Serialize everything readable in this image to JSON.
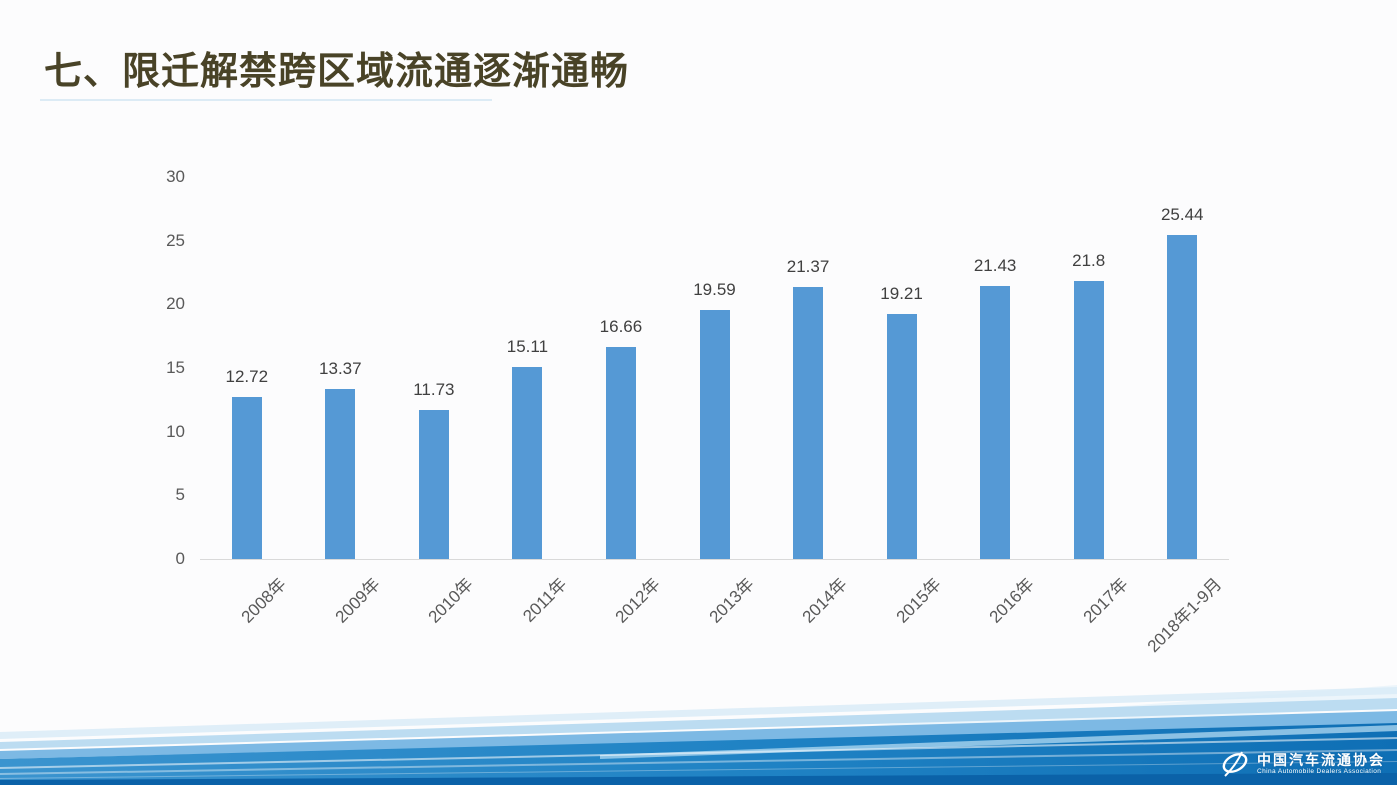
{
  "slide": {
    "title": "七、限迁解禁跨区域流通逐渐通畅"
  },
  "chart_data": {
    "type": "bar",
    "title": "",
    "xlabel": "",
    "ylabel": "",
    "categories": [
      "2008年",
      "2009年",
      "2010年",
      "2011年",
      "2012年",
      "2013年",
      "2014年",
      "2015年",
      "2016年",
      "2017年",
      "2018年1-9月"
    ],
    "values": [
      12.72,
      13.37,
      11.73,
      15.11,
      16.66,
      19.59,
      21.37,
      19.21,
      21.43,
      21.8,
      25.44
    ],
    "value_labels": [
      "12.72",
      "13.37",
      "11.73",
      "15.11",
      "16.66",
      "19.59",
      "21.37",
      "19.21",
      "21.43",
      "21.8",
      "25.44"
    ],
    "ylim": [
      0,
      30
    ],
    "yticks": [
      0,
      5,
      10,
      15,
      20,
      25,
      30
    ],
    "grid": false,
    "legend": null,
    "bar_color": "#5599d5",
    "value_label_color": "#404040",
    "tick_label_color": "#595959",
    "axis_line_color": "#d9d9d9"
  },
  "footer": {
    "org_cn": "中国汽车流通协会",
    "org_en": "China Automobile Dealers Association"
  },
  "colors": {
    "title": "#494327",
    "background": "#fcfcfd",
    "wave_deep": "#0b62a8",
    "wave_strong": "#1478bb",
    "wave_medium": "#7db9e4",
    "wave_light": "#bcdcf1",
    "wave_pale": "#d9ebf7"
  }
}
